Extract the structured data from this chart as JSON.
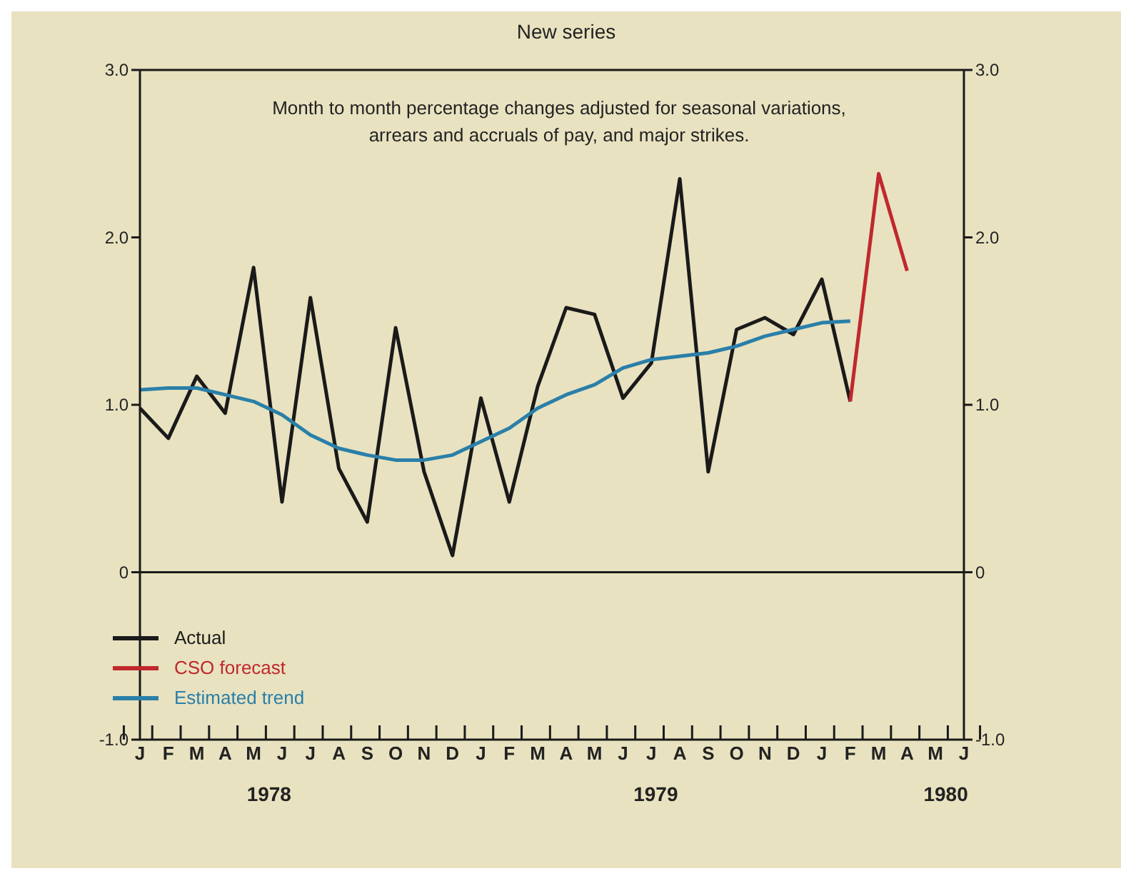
{
  "chart_data": {
    "type": "line",
    "title": "New series",
    "subtitle": "Month to month percentage changes adjusted for seasonal variations,\narrears and accruals of pay, and major strikes.",
    "categories": [
      "J",
      "F",
      "M",
      "A",
      "M",
      "J",
      "J",
      "A",
      "S",
      "O",
      "N",
      "D",
      "J",
      "F",
      "M",
      "A",
      "M",
      "J",
      "J",
      "A",
      "S",
      "O",
      "N",
      "D",
      "J",
      "F",
      "M",
      "A",
      "M",
      "J"
    ],
    "series": [
      {
        "name": "Actual",
        "color": "#1a1a1a",
        "values": [
          0.98,
          0.8,
          1.17,
          0.95,
          1.82,
          0.42,
          1.64,
          0.62,
          0.3,
          1.46,
          0.6,
          0.1,
          1.04,
          0.42,
          1.11,
          1.58,
          1.54,
          1.04,
          1.25,
          2.35,
          0.6,
          1.45,
          1.52,
          1.42,
          1.75,
          1.02,
          null,
          null,
          null,
          null
        ]
      },
      {
        "name": "CSO forecast",
        "color": "#c0282d",
        "values": [
          null,
          null,
          null,
          null,
          null,
          null,
          null,
          null,
          null,
          null,
          null,
          null,
          null,
          null,
          null,
          null,
          null,
          null,
          null,
          null,
          null,
          null,
          null,
          null,
          null,
          1.02,
          2.38,
          1.8,
          null,
          null
        ]
      },
      {
        "name": "Estimated trend",
        "color": "#2a7fa8",
        "values": [
          1.09,
          1.1,
          1.1,
          1.06,
          1.02,
          0.94,
          0.82,
          0.74,
          0.7,
          0.67,
          0.67,
          0.7,
          0.78,
          0.86,
          0.98,
          1.06,
          1.12,
          1.22,
          1.27,
          1.29,
          1.31,
          1.35,
          1.41,
          1.45,
          1.49,
          1.5,
          null,
          null,
          null,
          null
        ]
      }
    ],
    "ylim": [
      -1,
      3
    ],
    "yticks": [
      {
        "value": -1,
        "label": "-1.0"
      },
      0,
      {
        "value": 1,
        "label": "1.0"
      },
      {
        "value": 2,
        "label": "2.0"
      },
      {
        "value": 3,
        "label": "3.0"
      }
    ],
    "y2lim": [
      -1,
      3
    ],
    "y2ticks": [
      {
        "value": -1,
        "label": "-1.0"
      },
      0,
      {
        "value": 1,
        "label": "1.0"
      },
      {
        "value": 2,
        "label": "2.0"
      },
      {
        "value": 3,
        "label": "3.0"
      }
    ],
    "ref_lines": [
      {
        "axis": "y",
        "value": 0,
        "color": "#1a1a1a"
      }
    ],
    "annotations": [
      "1978",
      "1979",
      "1980"
    ],
    "legend": "bottom left",
    "marker": "none",
    "line_style": "solid"
  }
}
